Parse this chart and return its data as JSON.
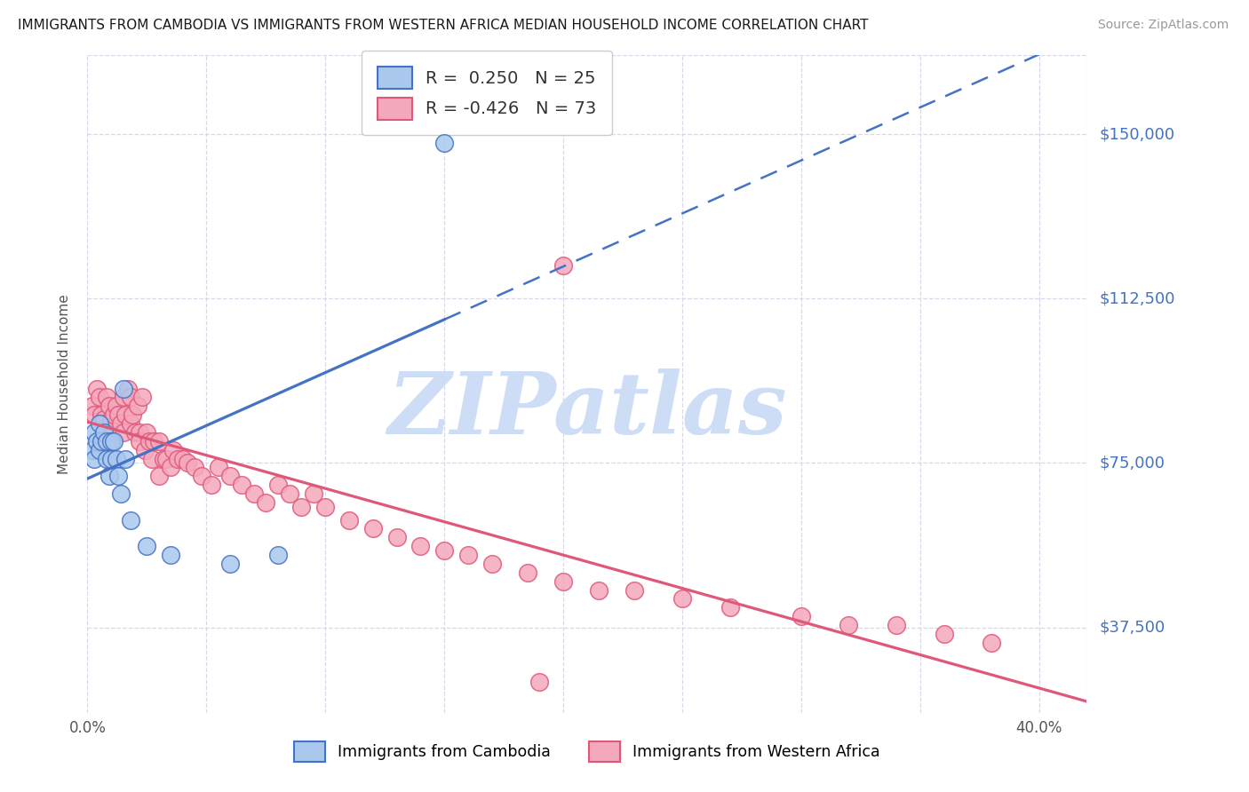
{
  "title": "IMMIGRANTS FROM CAMBODIA VS IMMIGRANTS FROM WESTERN AFRICA MEDIAN HOUSEHOLD INCOME CORRELATION CHART",
  "source": "Source: ZipAtlas.com",
  "ylabel": "Median Household Income",
  "xlim": [
    0.0,
    0.42
  ],
  "ylim": [
    18000,
    168000
  ],
  "ytick_vals": [
    37500,
    75000,
    112500,
    150000
  ],
  "ytick_labels": [
    "$37,500",
    "$75,000",
    "$112,500",
    "$150,000"
  ],
  "xtick_vals": [
    0.0,
    0.05,
    0.1,
    0.15,
    0.2,
    0.25,
    0.3,
    0.35,
    0.4
  ],
  "xtick_labels": [
    "0.0%",
    "",
    "",
    "",
    "",
    "",
    "",
    "",
    "40.0%"
  ],
  "background_color": "#ffffff",
  "grid_color": "#d8d8e8",
  "R_cambodia": 0.25,
  "N_cambodia": 25,
  "R_western_africa": -0.426,
  "N_western_africa": 73,
  "cambodia_fill": "#aac8ee",
  "cambodia_edge": "#4472C4",
  "wa_fill": "#f4a8bc",
  "wa_edge": "#E05878",
  "cam_line_color": "#4472C4",
  "wa_line_color": "#E05878",
  "watermark_color": "#ccddf5",
  "cam_x": [
    0.002,
    0.003,
    0.003,
    0.004,
    0.005,
    0.005,
    0.006,
    0.007,
    0.008,
    0.008,
    0.009,
    0.01,
    0.01,
    0.011,
    0.012,
    0.013,
    0.014,
    0.015,
    0.016,
    0.018,
    0.025,
    0.035,
    0.06,
    0.08,
    0.15
  ],
  "cam_y": [
    78000,
    82000,
    76000,
    80000,
    84000,
    78000,
    80000,
    82000,
    76000,
    80000,
    72000,
    76000,
    80000,
    80000,
    76000,
    72000,
    68000,
    92000,
    76000,
    62000,
    56000,
    54000,
    52000,
    54000,
    148000
  ],
  "wa_x": [
    0.002,
    0.003,
    0.004,
    0.005,
    0.006,
    0.007,
    0.007,
    0.008,
    0.008,
    0.009,
    0.01,
    0.01,
    0.011,
    0.012,
    0.013,
    0.014,
    0.015,
    0.015,
    0.016,
    0.017,
    0.018,
    0.018,
    0.019,
    0.02,
    0.021,
    0.022,
    0.022,
    0.023,
    0.024,
    0.025,
    0.026,
    0.027,
    0.028,
    0.03,
    0.03,
    0.032,
    0.033,
    0.035,
    0.036,
    0.038,
    0.04,
    0.042,
    0.045,
    0.048,
    0.052,
    0.055,
    0.06,
    0.065,
    0.07,
    0.075,
    0.08,
    0.085,
    0.09,
    0.095,
    0.1,
    0.11,
    0.12,
    0.13,
    0.14,
    0.15,
    0.16,
    0.17,
    0.185,
    0.2,
    0.215,
    0.23,
    0.25,
    0.27,
    0.3,
    0.32,
    0.34,
    0.36,
    0.38
  ],
  "wa_y": [
    88000,
    86000,
    92000,
    90000,
    86000,
    85000,
    82000,
    90000,
    82000,
    88000,
    85000,
    80000,
    86000,
    88000,
    86000,
    84000,
    90000,
    82000,
    86000,
    92000,
    90000,
    84000,
    86000,
    82000,
    88000,
    82000,
    80000,
    90000,
    78000,
    82000,
    80000,
    76000,
    80000,
    80000,
    72000,
    76000,
    76000,
    74000,
    78000,
    76000,
    76000,
    75000,
    74000,
    72000,
    70000,
    74000,
    72000,
    70000,
    68000,
    66000,
    70000,
    68000,
    65000,
    68000,
    65000,
    62000,
    60000,
    58000,
    56000,
    55000,
    54000,
    52000,
    50000,
    48000,
    46000,
    46000,
    44000,
    42000,
    40000,
    38000,
    38000,
    36000,
    34000
  ],
  "wa_outlier_x": [
    0.2
  ],
  "wa_outlier_y": [
    120000
  ],
  "wa_low_x": [
    0.19
  ],
  "wa_low_y": [
    25000
  ]
}
